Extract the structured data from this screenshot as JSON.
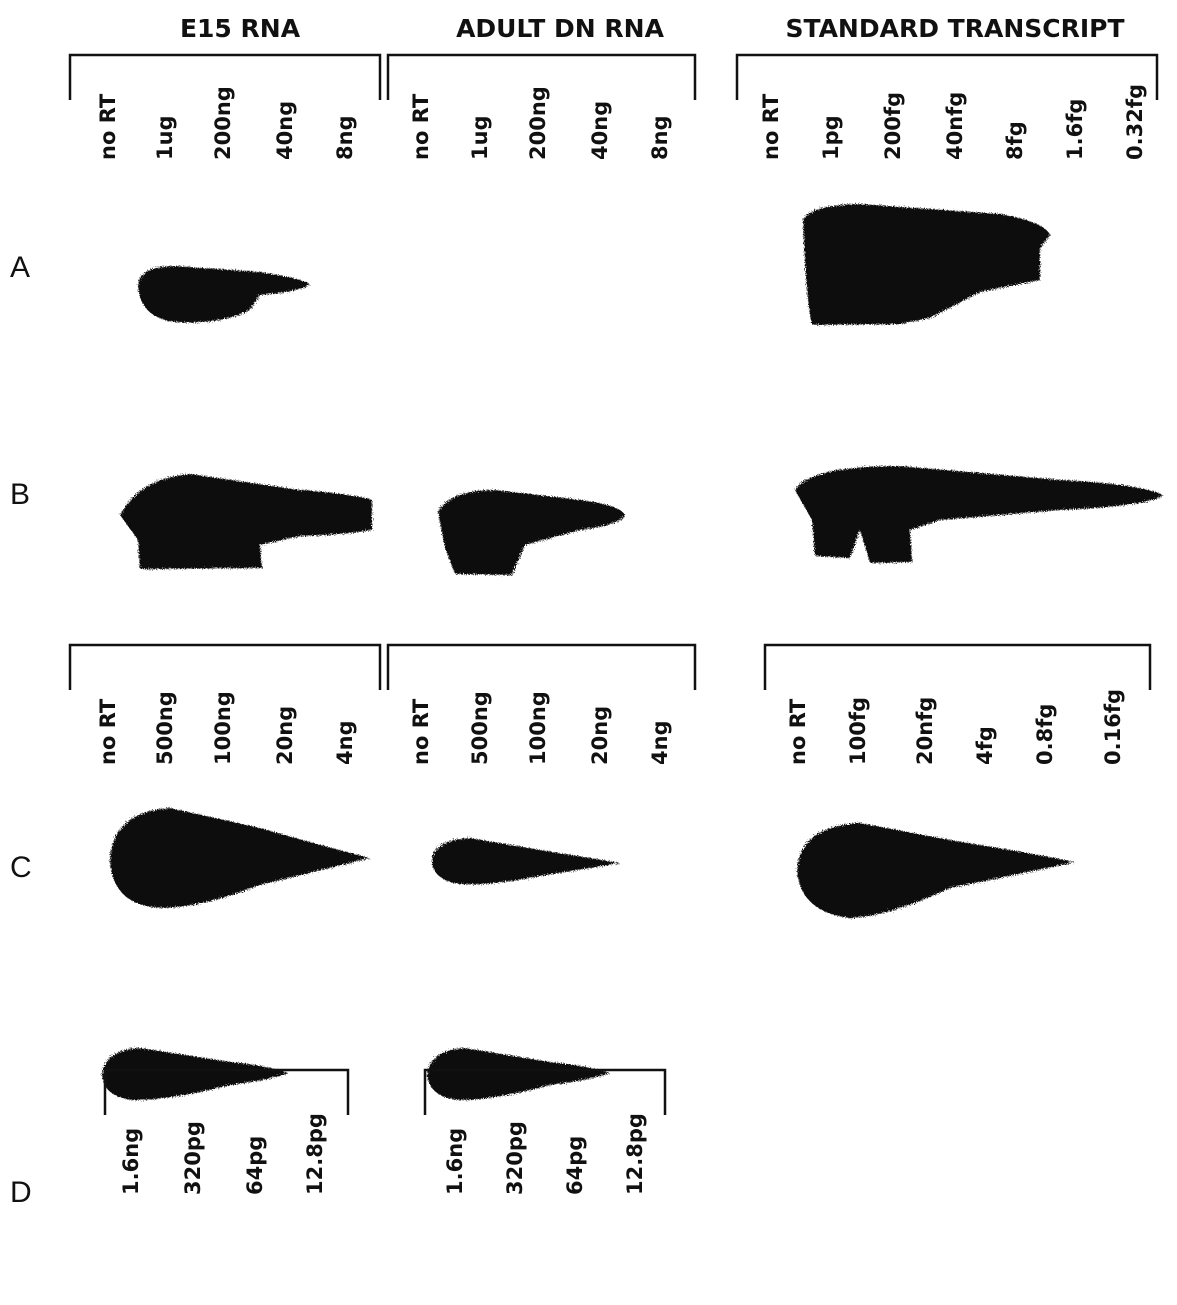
{
  "headers": [
    "E15 RNA",
    "ADULT DN RNA",
    "STANDARD TRANSCRIPT"
  ],
  "rows": [
    "A",
    "B",
    "C",
    "D"
  ],
  "top_lanes": [
    [
      "no RT",
      "1ug",
      "200ng",
      "40ng",
      "8ng"
    ],
    [
      "no RT",
      "1ug",
      "200ng",
      "40ng",
      "8ng"
    ],
    [
      "no RT",
      "1pg",
      "200fg",
      "40nfg",
      "8fg",
      "1.6fg",
      "0.32fg"
    ]
  ],
  "middle_lanes": [
    [
      "no RT",
      "500ng",
      "100ng",
      "20ng",
      "4ng"
    ],
    [
      "no RT",
      "500ng",
      "100ng",
      "20ng",
      "4ng"
    ],
    [
      "no RT",
      "100fg",
      "20nfg",
      "4fg",
      "0.8fg",
      "0.16fg"
    ]
  ],
  "bottom_lanes": [
    [
      "1.6ng",
      "320pg",
      "64pg",
      "12.8pg"
    ],
    [
      "1.6ng",
      "320pg",
      "64pg",
      "12.8pg"
    ]
  ]
}
